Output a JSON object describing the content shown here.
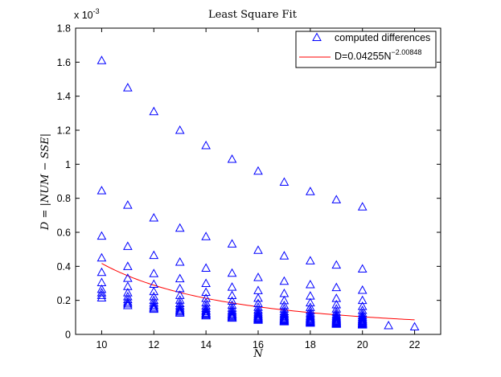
{
  "chart_data": {
    "type": "scatter",
    "title": "Least Square Fit",
    "xlabel": "N",
    "ylabel": "D = |NUM − SSE|",
    "xlim": [
      9,
      23
    ],
    "ylim": [
      0,
      0.0018
    ],
    "grid": false,
    "exponent_label": "x 10",
    "exponent_power": "-3",
    "x_ticks": [
      10,
      12,
      14,
      16,
      18,
      20,
      22
    ],
    "x_tick_labels": [
      "10",
      "12",
      "14",
      "16",
      "18",
      "20",
      "22"
    ],
    "y_ticks": [
      0,
      0.0002,
      0.0004,
      0.0006,
      0.0008,
      0.001,
      0.0012,
      0.0014,
      0.0016,
      0.0018
    ],
    "y_tick_labels": [
      "0",
      "0.2",
      "0.4",
      "0.6",
      "0.8",
      "1",
      "1.2",
      "1.4",
      "1.6",
      "1.8"
    ],
    "legend_position": "top-right",
    "series": [
      {
        "name": "computed differences",
        "marker": "triangle",
        "color": "#0000ff",
        "points": [
          {
            "x": 10,
            "y": [
              0.00161,
              0.000845,
              0.000578,
              0.00045,
              0.000365,
              0.000305,
              0.000265,
              0.000245,
              0.00023,
              0.000215
            ]
          },
          {
            "x": 11,
            "y": [
              0.00145,
              0.00076,
              0.000518,
              0.0004,
              0.00033,
              0.000282,
              0.000245,
              0.000222,
              0.000205,
              0.00019,
              0.00018,
              0.00017
            ]
          },
          {
            "x": 12,
            "y": [
              0.00131,
              0.000685,
              0.000465,
              0.000358,
              0.000295,
              0.000252,
              0.000222,
              0.0002,
              0.000185,
              0.000172,
              0.000162,
              0.000155,
              0.000148
            ]
          },
          {
            "x": 13,
            "y": [
              0.0012,
              0.000625,
              0.000425,
              0.000328,
              0.00027,
              0.00023,
              0.000202,
              0.000182,
              0.000168,
              0.000156,
              0.000146,
              0.000138,
              0.000132,
              0.000126
            ]
          },
          {
            "x": 14,
            "y": [
              0.00111,
              0.000575,
              0.00039,
              0.0003,
              0.000248,
              0.000212,
              0.000186,
              0.000168,
              0.000154,
              0.000143,
              0.000134,
              0.000126,
              0.00012,
              0.000115,
              0.00011
            ]
          },
          {
            "x": 15,
            "y": [
              0.00103,
              0.000532,
              0.00036,
              0.000278,
              0.000229,
              0.000196,
              0.000172,
              0.000155,
              0.000142,
              0.000132,
              0.000123,
              0.000116,
              0.00011,
              0.000105,
              0.0001,
              9.6e-05
            ]
          },
          {
            "x": 16,
            "y": [
              0.00096,
              0.000495,
              0.000335,
              0.000258,
              0.000213,
              0.000182,
              0.00016,
              0.000144,
              0.000132,
              0.000122,
              0.000114,
              0.000107,
              0.000101,
              9.6e-05,
              9.2e-05,
              8.8e-05,
              8.4e-05
            ]
          },
          {
            "x": 17,
            "y": [
              0.000895,
              0.000462,
              0.000313,
              0.000241,
              0.000199,
              0.00017,
              0.00015,
              0.000134,
              0.000123,
              0.000114,
              0.000106,
              0.0001,
              9.4e-05,
              8.9e-05,
              8.5e-05,
              8.1e-05,
              7.8e-05,
              7.5e-05
            ]
          },
          {
            "x": 18,
            "y": [
              0.00084,
              0.000433,
              0.000293,
              0.000226,
              0.000186,
              0.000159,
              0.00014,
              0.000126,
              0.000115,
              0.000106,
              9.9e-05,
              9.3e-05,
              8.8e-05,
              8.3e-05,
              7.9e-05,
              7.6e-05,
              7.3e-05,
              7e-05,
              6.7e-05
            ]
          },
          {
            "x": 19,
            "y": [
              0.000792,
              0.000408,
              0.000276,
              0.000212,
              0.000175,
              0.00015,
              0.000131,
              0.000118,
              0.000108,
              0.0001,
              9.3e-05,
              8.7e-05,
              8.2e-05,
              7.8e-05,
              7.4e-05,
              7.1e-05,
              6.8e-05,
              6.5e-05,
              6.3e-05,
              6e-05
            ]
          },
          {
            "x": 20,
            "y": [
              0.00075,
              0.000385,
              0.00026,
              0.0002,
              0.000165,
              0.000141,
              0.000124,
              0.000111,
              0.000102,
              9.4e-05,
              8.8e-05,
              8.2e-05,
              7.8e-05,
              7.4e-05,
              7e-05,
              6.7e-05,
              6.4e-05,
              6.2e-05,
              6e-05,
              5.8e-05,
              5.6e-05
            ]
          },
          {
            "x": 21,
            "y": [
              5.2e-05
            ]
          },
          {
            "x": 22,
            "y": [
              4.5e-05
            ]
          }
        ]
      },
      {
        "name": "D=0.04255N",
        "name_exponent": "−2.00848",
        "type": "line",
        "color": "#ff0000",
        "coefficient": 0.04255,
        "exponent": -2.00848,
        "x_range": [
          10,
          22
        ]
      }
    ]
  }
}
